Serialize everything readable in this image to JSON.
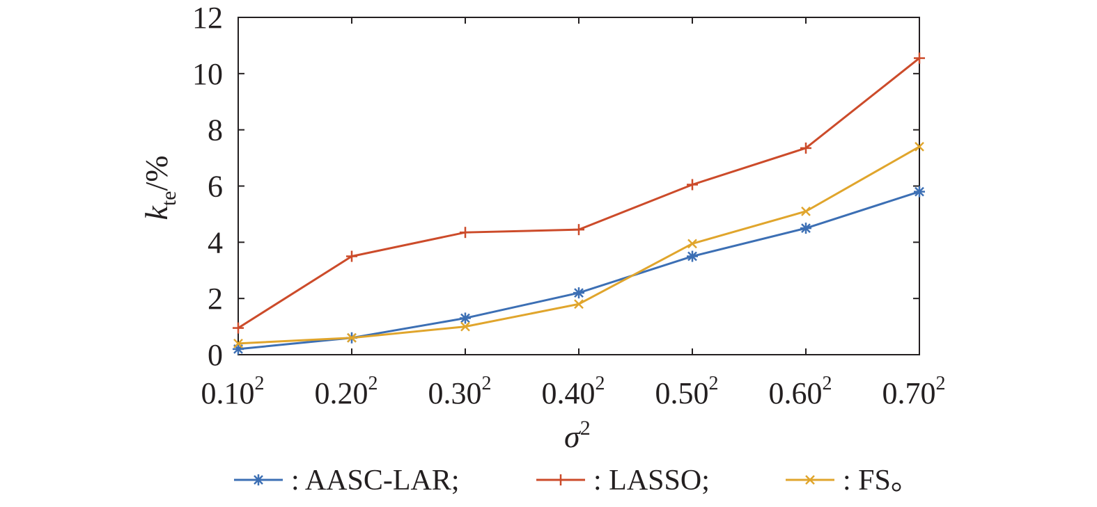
{
  "chart_data": {
    "type": "line",
    "categories": [
      "0.10",
      "0.20",
      "0.30",
      "0.40",
      "0.50",
      "0.60",
      "0.70"
    ],
    "category_superscript": "2",
    "series": [
      {
        "name": ": AASC-LAR;",
        "color": "#3c6fb4",
        "marker": "asterisk",
        "values": [
          0.2,
          0.6,
          1.3,
          2.2,
          3.5,
          4.5,
          5.8
        ]
      },
      {
        "name": ": LASSO;",
        "color": "#cc4b2a",
        "marker": "plus",
        "values": [
          0.95,
          3.5,
          4.35,
          4.45,
          6.05,
          7.35,
          10.55
        ]
      },
      {
        "name": ": FS。",
        "color": "#e0a52c",
        "marker": "cross",
        "values": [
          0.4,
          0.6,
          1.0,
          1.8,
          3.95,
          5.1,
          7.4
        ]
      }
    ],
    "ylim": [
      0,
      12
    ],
    "yticks": [
      0,
      2,
      4,
      6,
      8,
      10,
      12
    ],
    "xlabel": {
      "main": "σ",
      "sup": "2"
    },
    "ylabel": {
      "main": "k",
      "sub": "te",
      "rest": "/%"
    },
    "grid": false,
    "legend_position": "bottom"
  }
}
